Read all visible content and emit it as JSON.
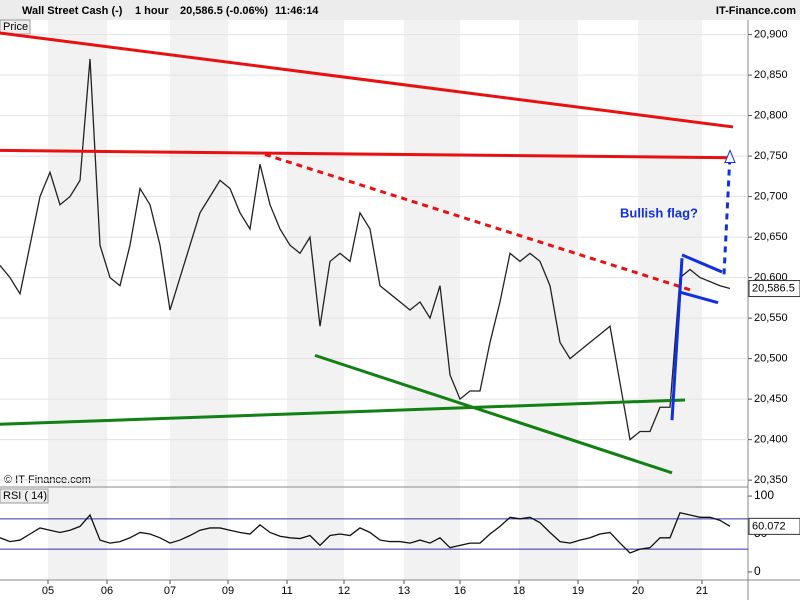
{
  "header": {
    "instrument": "Wall Street Cash (-)",
    "interval": "1 hour",
    "quote": "20,586.5 (-0.06%)",
    "time": "11:46:14",
    "site": "IT-Finance.com"
  },
  "chart_data": [
    {
      "type": "line",
      "panel_label": "Price",
      "credit": "© IT-Finance.com",
      "annotation": "Bullish flag?",
      "x": [
        0,
        1,
        2,
        3,
        4,
        5,
        6,
        7,
        8,
        9,
        10,
        11,
        12,
        13,
        14,
        15,
        16,
        17,
        18,
        19,
        20,
        21,
        22,
        23,
        24,
        25,
        26,
        27,
        28,
        29,
        30,
        31,
        32,
        33,
        34,
        35,
        36,
        37,
        38,
        39,
        40,
        41,
        42,
        43,
        44,
        45,
        46,
        47,
        48,
        49,
        50,
        51,
        52,
        53,
        54,
        55,
        56,
        57,
        58,
        59,
        60,
        61,
        62,
        63,
        64,
        65,
        66,
        67,
        68,
        69,
        70,
        71,
        72,
        73
      ],
      "series": [
        {
          "color": "#222222",
          "values": [
            20615,
            20600,
            20580,
            20640,
            20700,
            20730,
            20690,
            20700,
            20720,
            20870,
            20640,
            20600,
            20590,
            20640,
            20710,
            20690,
            20640,
            20560,
            20600,
            20640,
            20680,
            20700,
            20720,
            20710,
            20680,
            20660,
            20740,
            20690,
            20660,
            20640,
            20630,
            20650,
            20540,
            20620,
            20630,
            20620,
            20680,
            20660,
            20590,
            20580,
            20570,
            20560,
            20570,
            20550,
            20590,
            20480,
            20450,
            20460,
            20460,
            20520,
            20570,
            20630,
            20620,
            20630,
            20620,
            20590,
            20520,
            20500,
            20510,
            20520,
            20530,
            20540,
            20470,
            20400,
            20410,
            20410,
            20440,
            20440,
            20600,
            20610,
            20600,
            20595,
            20590,
            20586.5
          ]
        }
      ],
      "last_price": {
        "value": 20586.5,
        "label": "20,586.5"
      },
      "trendlines": [
        {
          "color": "#e81010",
          "dashed": false,
          "x": [
            0,
            73.3
          ],
          "y": [
            20902,
            20786
          ]
        },
        {
          "color": "#e81010",
          "dashed": false,
          "x": [
            0,
            73.3
          ],
          "y": [
            20757,
            20748
          ]
        },
        {
          "color": "#e81010",
          "dashed": true,
          "x": [
            26.5,
            69
          ],
          "y": [
            20752,
            20585
          ]
        },
        {
          "color": "#128012",
          "dashed": false,
          "x": [
            31.5,
            67.2
          ],
          "y": [
            20504,
            20359
          ]
        },
        {
          "color": "#128012",
          "dashed": false,
          "x": [
            0,
            68.5
          ],
          "y": [
            20419,
            20449
          ]
        },
        {
          "color": "#1030e0",
          "dashed": false,
          "x": [
            67.2,
            68.2
          ],
          "y": [
            20424,
            20624
          ]
        },
        {
          "color": "#1030e0",
          "dashed": false,
          "x": [
            68.2,
            72.2
          ],
          "y": [
            20628,
            20607
          ]
        },
        {
          "color": "#1030e0",
          "dashed": false,
          "x": [
            68,
            71.8
          ],
          "y": [
            20582,
            20569
          ]
        },
        {
          "color": "#1030e0",
          "dashed": true,
          "x": [
            72.4,
            73
          ],
          "y": [
            20604,
            20752
          ]
        }
      ],
      "xlim": [
        0,
        74.8
      ],
      "ylim": [
        20344,
        20918
      ],
      "xticks": [
        {
          "value": 4.8,
          "label": "05"
        },
        {
          "value": 10.7,
          "label": "06"
        },
        {
          "value": 17,
          "label": "07"
        },
        {
          "value": 22.8,
          "label": "09"
        },
        {
          "value": 28.7,
          "label": "11"
        },
        {
          "value": 34.4,
          "label": "12"
        },
        {
          "value": 40.4,
          "label": "13"
        },
        {
          "value": 46,
          "label": "16"
        },
        {
          "value": 51.9,
          "label": "18"
        },
        {
          "value": 57.8,
          "label": "19"
        },
        {
          "value": 63.8,
          "label": "20"
        },
        {
          "value": 70.2,
          "label": "21"
        }
      ],
      "yticks": [
        {
          "value": 20350,
          "label": "20,350"
        },
        {
          "value": 20400,
          "label": "20,400"
        },
        {
          "value": 20450,
          "label": "20,450"
        },
        {
          "value": 20500,
          "label": "20,500"
        },
        {
          "value": 20550,
          "label": "20,550"
        },
        {
          "value": 20600,
          "label": "20,600"
        },
        {
          "value": 20650,
          "label": "20,650"
        },
        {
          "value": 20700,
          "label": "20,700"
        },
        {
          "value": 20750,
          "label": "20,750"
        },
        {
          "value": 20800,
          "label": "20,800"
        },
        {
          "value": 20850,
          "label": "20,850"
        },
        {
          "value": 20900,
          "label": "20,900"
        }
      ],
      "grid": true
    },
    {
      "type": "line",
      "panel_label": "RSI ( 14)",
      "series": [
        {
          "color": "#111111",
          "values": [
            45,
            40,
            42,
            50,
            58,
            55,
            52,
            55,
            60,
            75,
            42,
            38,
            40,
            45,
            52,
            50,
            45,
            38,
            42,
            48,
            55,
            58,
            58,
            55,
            52,
            50,
            62,
            52,
            47,
            45,
            44,
            48,
            35,
            48,
            50,
            48,
            58,
            52,
            42,
            40,
            40,
            38,
            42,
            38,
            45,
            32,
            35,
            38,
            38,
            50,
            60,
            72,
            70,
            72,
            65,
            52,
            40,
            38,
            42,
            45,
            50,
            52,
            38,
            25,
            30,
            32,
            45,
            45,
            78,
            75,
            72,
            72,
            68,
            60.072
          ]
        }
      ],
      "last_value": 60.072,
      "levels": [
        70,
        30
      ],
      "level_color": "#3030a0",
      "ylim": [
        -8,
        108
      ],
      "yticks": [
        0,
        50,
        100
      ]
    }
  ]
}
